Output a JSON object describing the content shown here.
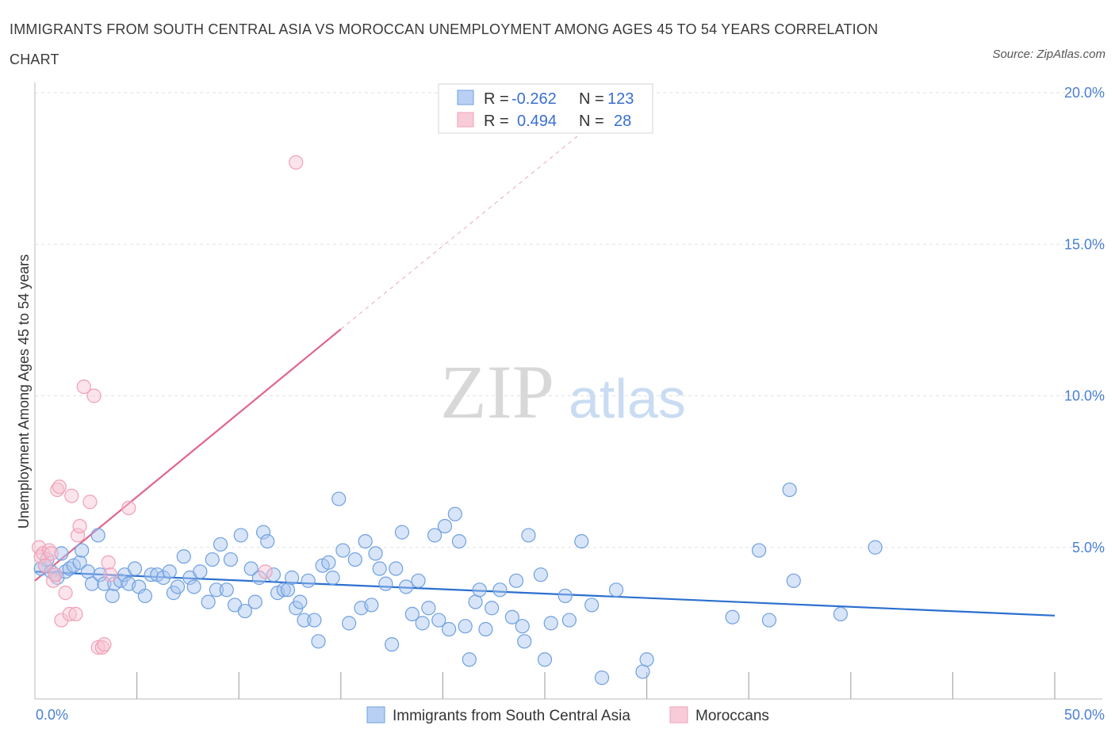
{
  "title": "IMMIGRANTS FROM SOUTH CENTRAL ASIA VS MOROCCAN UNEMPLOYMENT AMONG AGES 45 TO 54 YEARS CORRELATION CHART",
  "source": "Source: ZipAtlas.com",
  "watermark": {
    "zip": "ZIP",
    "atlas": "atlas"
  },
  "colors": {
    "blue": "#6fa0e0",
    "blue_fill": "#a9c6ef",
    "blue_line": "#2b6fcf",
    "pink": "#f0a0b8",
    "pink_fill": "#f6c3d2",
    "pink_line": "#e0658e",
    "axis_text": "#4a7fd4"
  },
  "legend": {
    "rows": [
      {
        "r_label": "R =",
        "r_value": "-0.262",
        "n_label": "N =",
        "n_value": "123"
      },
      {
        "r_label": "R =",
        "r_value": "0.494",
        "n_label": "N =",
        "n_value": "28"
      }
    ]
  },
  "bottom_legend": [
    "Immigrants from South Central Asia",
    "Moroccans"
  ],
  "chart_data": {
    "type": "scatter",
    "ylabel": "Unemployment Among Ages 45 to 54 years",
    "xlim": [
      0,
      50
    ],
    "ylim": [
      0,
      20
    ],
    "x_tick_labels": [
      "0.0%",
      "50.0%"
    ],
    "y_ticks": [
      5,
      10,
      15,
      20
    ],
    "y_tick_labels": [
      "5.0%",
      "10.0%",
      "15.0%",
      "20.0%"
    ],
    "grid": true,
    "series": [
      {
        "name": "Immigrants from South Central Asia",
        "trend": {
          "x": [
            0,
            50
          ],
          "y": [
            4.2,
            2.75
          ]
        },
        "points": [
          [
            0.3,
            4.3
          ],
          [
            0.5,
            4.4
          ],
          [
            0.6,
            4.6
          ],
          [
            0.8,
            4.2
          ],
          [
            1.0,
            4.1
          ],
          [
            1.1,
            4.0
          ],
          [
            1.3,
            4.8
          ],
          [
            1.5,
            4.2
          ],
          [
            1.7,
            4.3
          ],
          [
            1.9,
            4.4
          ],
          [
            2.2,
            4.5
          ],
          [
            2.3,
            4.9
          ],
          [
            2.6,
            4.2
          ],
          [
            2.8,
            3.8
          ],
          [
            3.1,
            5.4
          ],
          [
            3.2,
            4.1
          ],
          [
            3.4,
            3.8
          ],
          [
            3.8,
            3.4
          ],
          [
            3.9,
            3.8
          ],
          [
            4.2,
            3.9
          ],
          [
            4.4,
            4.1
          ],
          [
            4.6,
            3.8
          ],
          [
            4.9,
            4.3
          ],
          [
            5.1,
            3.7
          ],
          [
            5.4,
            3.4
          ],
          [
            5.7,
            4.1
          ],
          [
            6.0,
            4.1
          ],
          [
            6.3,
            4.0
          ],
          [
            6.6,
            4.2
          ],
          [
            6.8,
            3.5
          ],
          [
            7.0,
            3.7
          ],
          [
            7.3,
            4.7
          ],
          [
            7.6,
            4.0
          ],
          [
            7.8,
            3.7
          ],
          [
            8.1,
            4.2
          ],
          [
            8.5,
            3.2
          ],
          [
            8.7,
            4.6
          ],
          [
            8.9,
            3.6
          ],
          [
            9.1,
            5.1
          ],
          [
            9.4,
            3.6
          ],
          [
            9.6,
            4.6
          ],
          [
            9.8,
            3.1
          ],
          [
            10.1,
            5.4
          ],
          [
            10.3,
            2.9
          ],
          [
            10.6,
            4.3
          ],
          [
            10.8,
            3.2
          ],
          [
            11.0,
            4.0
          ],
          [
            11.2,
            5.5
          ],
          [
            11.4,
            5.2
          ],
          [
            11.7,
            4.1
          ],
          [
            11.9,
            3.5
          ],
          [
            12.2,
            3.6
          ],
          [
            12.4,
            3.6
          ],
          [
            12.6,
            4.0
          ],
          [
            12.8,
            3.0
          ],
          [
            13.0,
            3.2
          ],
          [
            13.2,
            2.6
          ],
          [
            13.4,
            3.9
          ],
          [
            13.7,
            2.6
          ],
          [
            13.9,
            1.9
          ],
          [
            14.1,
            4.4
          ],
          [
            14.4,
            4.5
          ],
          [
            14.6,
            4.0
          ],
          [
            14.9,
            6.6
          ],
          [
            15.1,
            4.9
          ],
          [
            15.4,
            2.5
          ],
          [
            15.7,
            4.6
          ],
          [
            16.0,
            3.0
          ],
          [
            16.2,
            5.2
          ],
          [
            16.5,
            3.1
          ],
          [
            16.7,
            4.8
          ],
          [
            16.9,
            4.3
          ],
          [
            17.2,
            3.8
          ],
          [
            17.5,
            1.8
          ],
          [
            17.7,
            4.3
          ],
          [
            18.0,
            5.5
          ],
          [
            18.2,
            3.7
          ],
          [
            18.5,
            2.8
          ],
          [
            18.8,
            3.9
          ],
          [
            19.0,
            2.5
          ],
          [
            19.3,
            3.0
          ],
          [
            19.6,
            5.4
          ],
          [
            19.8,
            2.6
          ],
          [
            20.1,
            5.7
          ],
          [
            20.3,
            2.3
          ],
          [
            20.6,
            6.1
          ],
          [
            20.8,
            5.2
          ],
          [
            21.1,
            2.4
          ],
          [
            21.3,
            1.3
          ],
          [
            21.6,
            3.2
          ],
          [
            21.8,
            3.6
          ],
          [
            22.1,
            2.3
          ],
          [
            22.4,
            3.0
          ],
          [
            22.8,
            3.6
          ],
          [
            23.4,
            2.7
          ],
          [
            23.6,
            3.9
          ],
          [
            23.9,
            2.4
          ],
          [
            24.0,
            1.9
          ],
          [
            24.2,
            5.4
          ],
          [
            24.8,
            4.1
          ],
          [
            25.0,
            1.3
          ],
          [
            25.3,
            2.5
          ],
          [
            26.0,
            3.4
          ],
          [
            26.2,
            2.6
          ],
          [
            26.8,
            5.2
          ],
          [
            27.3,
            3.1
          ],
          [
            27.8,
            0.7
          ],
          [
            28.5,
            3.6
          ],
          [
            29.8,
            0.9
          ],
          [
            30.0,
            1.3
          ],
          [
            34.2,
            2.7
          ],
          [
            35.5,
            4.9
          ],
          [
            36.0,
            2.6
          ],
          [
            37.0,
            6.9
          ],
          [
            37.2,
            3.9
          ],
          [
            39.5,
            2.8
          ],
          [
            41.2,
            5.0
          ]
        ]
      },
      {
        "name": "Moroccans",
        "trend": {
          "x": [
            0,
            15
          ],
          "y": [
            3.9,
            12.2
          ]
        },
        "trend_dashed": {
          "x": [
            15,
            28.3
          ],
          "y": [
            12.2,
            19.5
          ]
        },
        "points": [
          [
            0.2,
            5.0
          ],
          [
            0.3,
            4.7
          ],
          [
            0.4,
            4.8
          ],
          [
            0.5,
            4.4
          ],
          [
            0.7,
            4.9
          ],
          [
            0.8,
            4.8
          ],
          [
            0.9,
            3.9
          ],
          [
            1.0,
            4.1
          ],
          [
            1.1,
            6.9
          ],
          [
            1.2,
            7.0
          ],
          [
            1.3,
            2.6
          ],
          [
            1.5,
            3.5
          ],
          [
            1.7,
            2.8
          ],
          [
            1.8,
            6.7
          ],
          [
            2.0,
            2.8
          ],
          [
            2.1,
            5.4
          ],
          [
            2.2,
            5.7
          ],
          [
            2.4,
            10.3
          ],
          [
            2.7,
            6.5
          ],
          [
            2.9,
            10.0
          ],
          [
            3.1,
            1.7
          ],
          [
            3.3,
            1.7
          ],
          [
            3.4,
            1.8
          ],
          [
            3.6,
            4.5
          ],
          [
            3.7,
            4.1
          ],
          [
            4.6,
            6.3
          ],
          [
            11.3,
            4.2
          ],
          [
            12.8,
            17.7
          ]
        ]
      }
    ]
  }
}
